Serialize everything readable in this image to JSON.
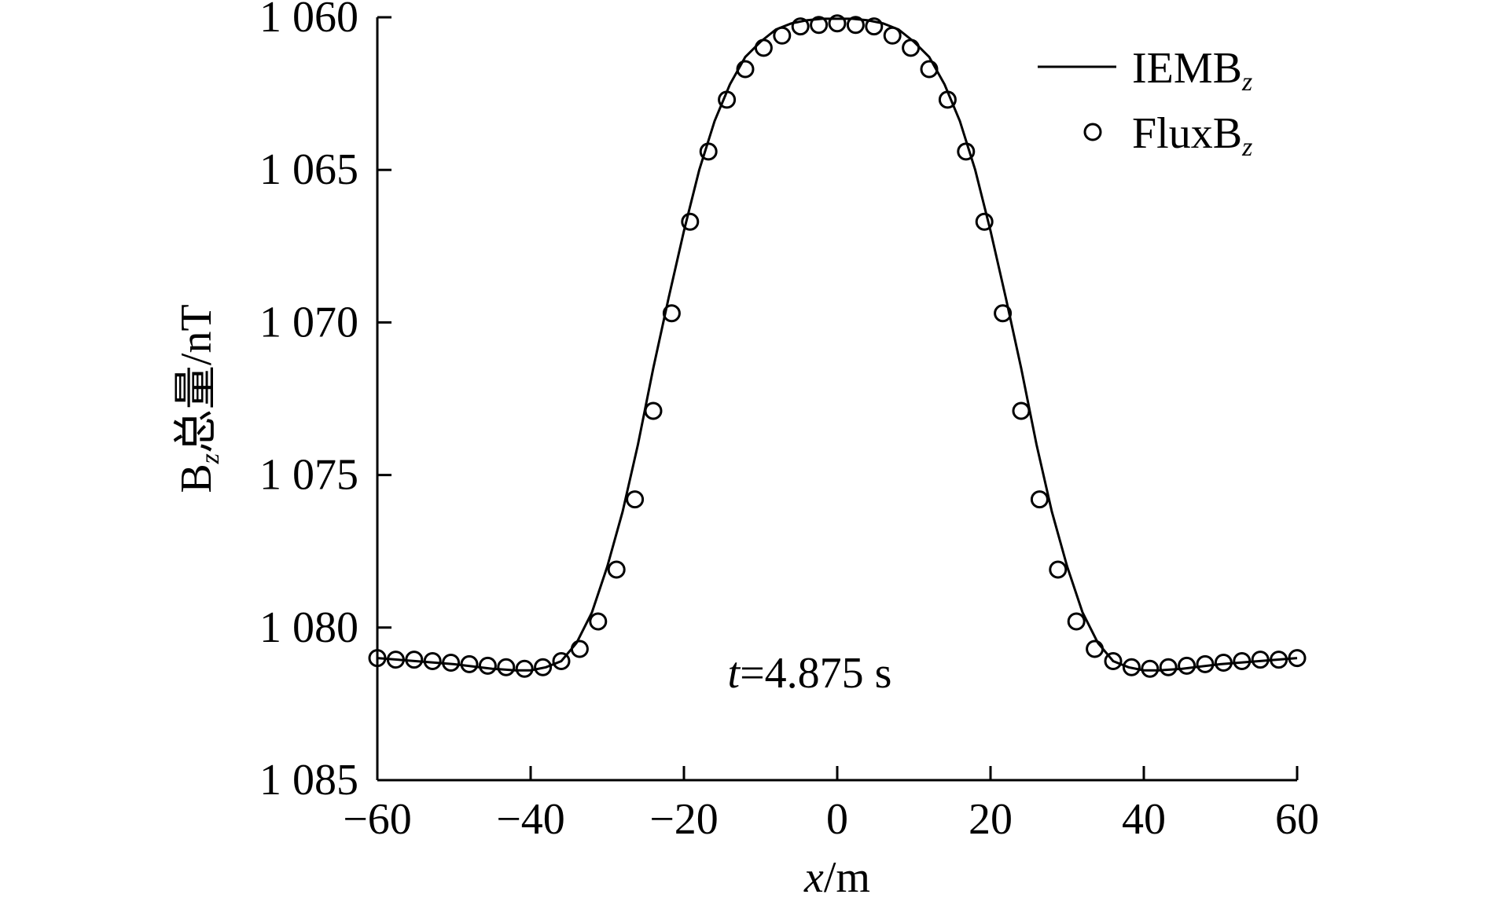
{
  "chart_data": {
    "type": "line",
    "x_label": {
      "var": "x",
      "unit": "/m"
    },
    "y_label": {
      "base": "B",
      "sub": "z",
      "rest": "总量/nT"
    },
    "xlim": [
      -60,
      60
    ],
    "ylim": [
      1060,
      1085
    ],
    "y_inverted": true,
    "x_ticks": [
      -60,
      -40,
      -20,
      0,
      20,
      40,
      60
    ],
    "x_tick_labels": [
      "−60",
      "−40",
      "−20",
      "0",
      "20",
      "40",
      "60"
    ],
    "y_ticks": [
      1060,
      1065,
      1070,
      1075,
      1080,
      1085
    ],
    "y_tick_labels": [
      "1 060",
      "1 065",
      "1 070",
      "1 075",
      "1 080",
      "1 085"
    ],
    "annotation": {
      "var": "t",
      "rest": "=4.875 s"
    },
    "legend_position": "top-right",
    "series": [
      {
        "name": "IEMB",
        "name_sub": "z",
        "style": "line",
        "color": "#000000",
        "x": [
          -60,
          -55,
          -50,
          -45,
          -42,
          -40,
          -38,
          -36,
          -34,
          -32,
          -30,
          -28,
          -26,
          -24,
          -22,
          -20,
          -18,
          -16,
          -14,
          -12,
          -10,
          -8,
          -6,
          -4,
          -2,
          0,
          2,
          4,
          6,
          8,
          10,
          12,
          14,
          16,
          18,
          20,
          22,
          24,
          26,
          28,
          30,
          32,
          34,
          36,
          38,
          40,
          42,
          45,
          50,
          55,
          60
        ],
        "y": [
          1081.0,
          1081.1,
          1081.2,
          1081.35,
          1081.4,
          1081.4,
          1081.3,
          1081.1,
          1080.5,
          1079.5,
          1078.0,
          1076.2,
          1074.0,
          1071.5,
          1069.2,
          1067.0,
          1065.0,
          1063.4,
          1062.2,
          1061.3,
          1060.8,
          1060.4,
          1060.2,
          1060.1,
          1060.05,
          1060.05,
          1060.05,
          1060.1,
          1060.2,
          1060.4,
          1060.8,
          1061.3,
          1062.2,
          1063.4,
          1065.0,
          1067.0,
          1069.2,
          1071.5,
          1074.0,
          1076.2,
          1078.0,
          1079.5,
          1080.5,
          1081.1,
          1081.3,
          1081.4,
          1081.4,
          1081.35,
          1081.2,
          1081.1,
          1081.0
        ]
      },
      {
        "name": "FluxB",
        "name_sub": "z",
        "style": "markers",
        "marker": "circle",
        "color": "#000000",
        "x": [
          -60,
          -57.6,
          -55.2,
          -52.8,
          -50.4,
          -48,
          -45.6,
          -43.2,
          -40.8,
          -38.4,
          -36,
          -33.6,
          -31.2,
          -28.8,
          -26.4,
          -24,
          -21.6,
          -19.2,
          -16.8,
          -14.4,
          -12,
          -9.6,
          -7.2,
          -4.8,
          -2.4,
          0,
          2.4,
          4.8,
          7.2,
          9.6,
          12,
          14.4,
          16.8,
          19.2,
          21.6,
          24,
          26.4,
          28.8,
          31.2,
          33.6,
          36,
          38.4,
          40.8,
          43.2,
          45.6,
          48,
          50.4,
          52.8,
          55.2,
          57.6,
          60
        ],
        "y": [
          1081.0,
          1081.05,
          1081.05,
          1081.1,
          1081.15,
          1081.2,
          1081.25,
          1081.3,
          1081.35,
          1081.3,
          1081.1,
          1080.7,
          1079.8,
          1078.1,
          1075.8,
          1072.9,
          1069.7,
          1066.7,
          1064.4,
          1062.7,
          1061.7,
          1061.0,
          1060.6,
          1060.3,
          1060.25,
          1060.2,
          1060.25,
          1060.3,
          1060.6,
          1061.0,
          1061.7,
          1062.7,
          1064.4,
          1066.7,
          1069.7,
          1072.9,
          1075.8,
          1078.1,
          1079.8,
          1080.7,
          1081.1,
          1081.3,
          1081.35,
          1081.3,
          1081.25,
          1081.2,
          1081.15,
          1081.1,
          1081.05,
          1081.05,
          1081.0
        ]
      }
    ]
  }
}
